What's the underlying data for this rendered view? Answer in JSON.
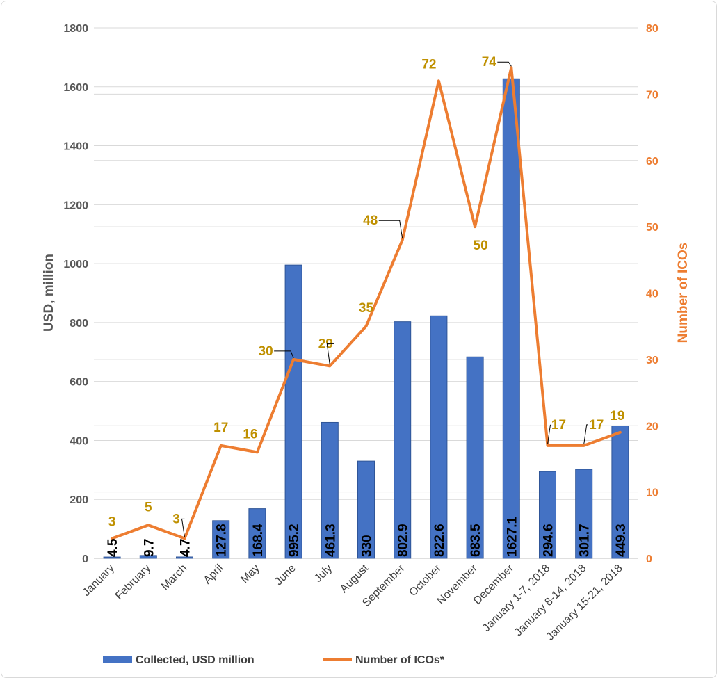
{
  "chart_data": {
    "type": "bar",
    "categories": [
      "January",
      "February",
      "March",
      "April",
      "May",
      "June",
      "July",
      "August",
      "September",
      "October",
      "November",
      "December",
      "January 1-7, 2018",
      "January 8-14, 2018",
      "January 15-21, 2018"
    ],
    "series": [
      {
        "name": "Collected, USD million",
        "type": "bar",
        "axis": "left",
        "values": [
          4.5,
          9.7,
          4.7,
          127.8,
          168.4,
          995.2,
          461.3,
          330,
          802.9,
          822.6,
          683.5,
          1627.1,
          294.6,
          301.7,
          449.3
        ],
        "labels": [
          "4.5",
          "9.7",
          "4.7",
          "127.8",
          "168.4",
          "995.2",
          "461.3",
          "330",
          "802.9",
          "822.6",
          "683.5",
          "1627.1",
          "294.6",
          "301.7",
          "449.3"
        ],
        "color": "#4472c4"
      },
      {
        "name": "Number of ICOs*",
        "type": "line",
        "axis": "right",
        "values": [
          3,
          5,
          3,
          17,
          16,
          30,
          29,
          35,
          48,
          72,
          50,
          74,
          17,
          17,
          19
        ],
        "labels": [
          "3",
          "5",
          "3",
          "17",
          "16",
          "30",
          "29",
          "35",
          "48",
          "72",
          "50",
          "74",
          "17",
          "17",
          "19"
        ],
        "color": "#ed7d31"
      }
    ],
    "ylabel": "USD, million",
    "y2label": "Number of ICOs",
    "ylim": [
      0,
      1800
    ],
    "y2lim": [
      0,
      80
    ],
    "yticks": [
      "0",
      "200",
      "400",
      "600",
      "800",
      "1000",
      "1200",
      "1400",
      "1600",
      "1800"
    ],
    "y2ticks": [
      "0",
      "10",
      "20",
      "30",
      "40",
      "50",
      "60",
      "70",
      "80"
    ],
    "grid": true,
    "legend_position": "bottom",
    "label_color": "#bf9000"
  }
}
